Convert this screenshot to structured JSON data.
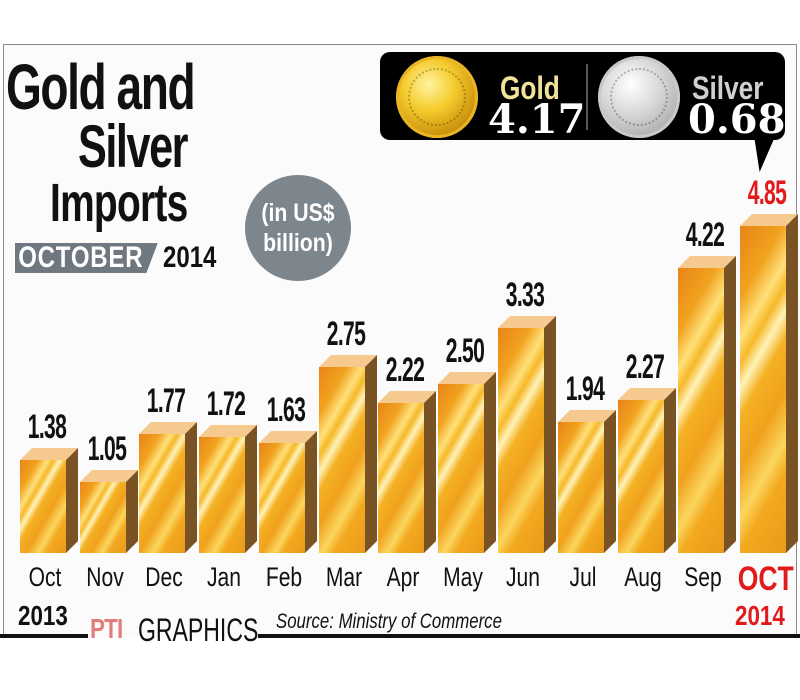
{
  "header": {
    "title_line1": "Gold and",
    "title_line2": "Silver",
    "title_line3": "Imports",
    "month": "OCTOBER",
    "year": "2014",
    "unit_line1": "(in US$",
    "unit_line2": "billion)"
  },
  "callout": {
    "gold_label": "Gold",
    "gold_value": "4.17",
    "silver_label": "Silver",
    "silver_value": "0.68"
  },
  "axis": {
    "start_year": "2013",
    "end_year": "2014"
  },
  "footer": {
    "credit_logo": "PTI",
    "credit_text": "GRAPHICS",
    "source": "Source: Ministry of Commerce"
  },
  "colors": {
    "bar_front": "#f0a11d",
    "bar_top": "#f6c98f",
    "bar_side": "#7a5324",
    "highlight": "#e11b1b",
    "gold_label": "#f3e39a",
    "silver_label": "#d0d0d0",
    "badge_gray": "#6f7780"
  },
  "chart_data": {
    "type": "bar",
    "title": "Gold and Silver Imports OCTOBER 2014",
    "subtitle": "(in US$ billion)",
    "xlabel": "",
    "ylabel": "US$ billion",
    "categories": [
      "Oct",
      "Nov",
      "Dec",
      "Jan",
      "Feb",
      "Mar",
      "Apr",
      "May",
      "Jun",
      "Jul",
      "Aug",
      "Sep",
      "OCT"
    ],
    "values": [
      1.38,
      1.05,
      1.77,
      1.72,
      1.63,
      2.75,
      2.22,
      2.5,
      3.33,
      1.94,
      2.27,
      4.22,
      4.85
    ],
    "value_labels": [
      "1.38",
      "1.05",
      "1.77",
      "1.72",
      "1.63",
      "2.75",
      "2.22",
      "2.50",
      "3.33",
      "1.94",
      "2.27",
      "4.22",
      "4.85"
    ],
    "highlighted_category": "OCT",
    "period": {
      "start": "Oct 2013",
      "end": "Oct 2014"
    },
    "breakdown_latest": {
      "Gold": 4.17,
      "Silver": 0.68
    },
    "grid": false,
    "legend": "none",
    "source": "Source: Ministry of Commerce",
    "ylim": [
      0,
      5
    ]
  }
}
